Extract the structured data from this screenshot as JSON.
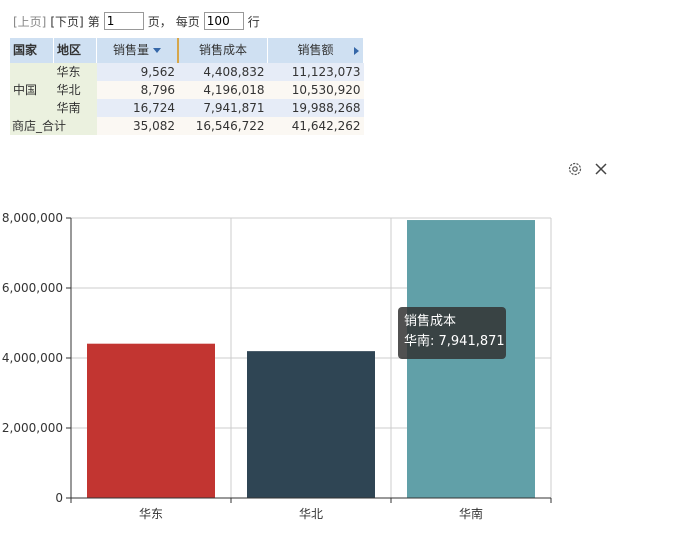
{
  "pager": {
    "prev": "[上页]",
    "next": "[下页]",
    "page_prefix": "第",
    "page_value": "1",
    "page_suffix": "页，",
    "per_page_prefix": "每页",
    "per_page_value": "100",
    "per_page_suffix": "行"
  },
  "table": {
    "headers": [
      "国家",
      "地区",
      "销售量",
      "销售成本",
      "销售额"
    ],
    "country": "中国",
    "rows": [
      {
        "region": "华东",
        "qty": "9,562",
        "cost": "4,408,832",
        "sales": "11,123,073"
      },
      {
        "region": "华北",
        "qty": "8,796",
        "cost": "4,196,018",
        "sales": "10,530,920"
      },
      {
        "region": "华南",
        "qty": "16,724",
        "cost": "7,941,871",
        "sales": "19,988,268"
      }
    ],
    "total": {
      "label": "商店_合计",
      "qty": "35,082",
      "cost": "16,546,722",
      "sales": "41,642,262"
    }
  },
  "chart_data": {
    "type": "bar",
    "categories": [
      "华东",
      "华北",
      "华南"
    ],
    "series": [
      {
        "name": "销售成本",
        "values": [
          4408832,
          4196018,
          7941871
        ],
        "colors": [
          "#c23531",
          "#2f4554",
          "#61a0a8"
        ]
      }
    ],
    "ylim": [
      0,
      8000000
    ],
    "yticks": [
      "0",
      "2,000,000",
      "4,000,000",
      "6,000,000",
      "8,000,000"
    ],
    "grid": true
  },
  "tooltip": {
    "title": "销售成本",
    "text": "华南: 7,941,871"
  },
  "icons": {
    "settings": "gear-icon",
    "close": "close-icon"
  }
}
